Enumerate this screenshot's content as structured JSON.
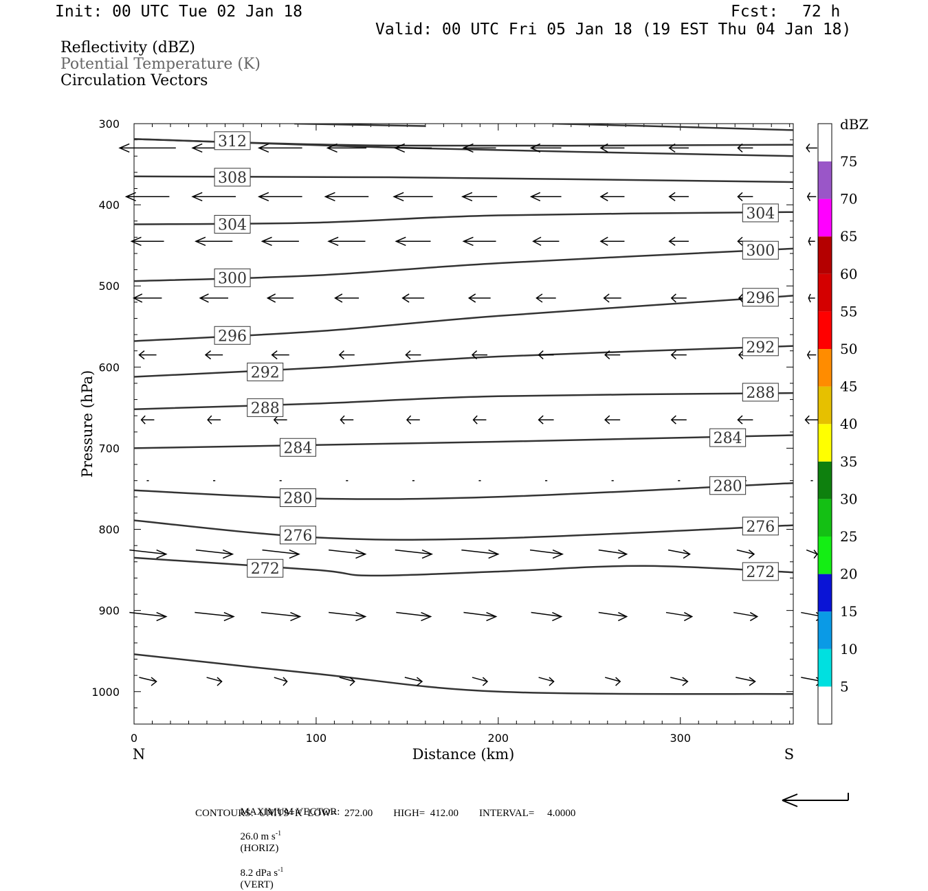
{
  "header": {
    "init": "Init: 00 UTC Tue 02 Jan 18",
    "fcst_label": "Fcst:",
    "fcst_value": "72 h",
    "valid": "Valid: 00 UTC Fri 05 Jan 18 (19 EST Thu 04 Jan 18)"
  },
  "fields": {
    "reflectivity": "Reflectivity (dBZ)",
    "theta": "Potential Temperature (K)",
    "vectors": "Circulation Vectors"
  },
  "colors": {
    "theta_label": "#666666",
    "contour": "#333333"
  },
  "chart_data": {
    "type": "line",
    "title": "",
    "xlabel": "Distance (km)",
    "ylabel": "Pressure (hPa)",
    "xlim": [
      0,
      362
    ],
    "ylim": [
      1040,
      300
    ],
    "y_inverted": true,
    "x_ticks": [
      0,
      100,
      200,
      300
    ],
    "y_ticks": [
      300,
      400,
      500,
      600,
      700,
      800,
      900,
      1000
    ],
    "x_end_labels": {
      "left": "N",
      "right": "S"
    },
    "isentropes": [
      {
        "name": "312",
        "x": [
          0,
          140,
          362
        ],
        "y": [
          319,
          327,
          326
        ]
      },
      {
        "name": "308",
        "x": [
          0,
          140,
          362
        ],
        "y": [
          365,
          366,
          372
        ]
      },
      {
        "name": "304",
        "x": [
          0,
          100,
          200,
          362
        ],
        "y": [
          424,
          422,
          413,
          409
        ]
      },
      {
        "name": "300",
        "x": [
          0,
          100,
          200,
          362
        ],
        "y": [
          494,
          487,
          472,
          454
        ]
      },
      {
        "name": "296",
        "x": [
          0,
          100,
          200,
          362
        ],
        "y": [
          568,
          556,
          537,
          512
        ]
      },
      {
        "name": "292",
        "x": [
          0,
          100,
          200,
          362
        ],
        "y": [
          612,
          601,
          587,
          574
        ]
      },
      {
        "name": "288",
        "x": [
          0,
          100,
          200,
          362
        ],
        "y": [
          652,
          645,
          636,
          632
        ]
      },
      {
        "name": "284",
        "x": [
          0,
          100,
          200,
          362
        ],
        "y": [
          700,
          696,
          692,
          684
        ]
      },
      {
        "name": "280",
        "x": [
          0,
          100,
          200,
          362
        ],
        "y": [
          752,
          762,
          760,
          743
        ]
      },
      {
        "name": "276",
        "x": [
          0,
          100,
          200,
          362
        ],
        "y": [
          789,
          810,
          811,
          795
        ]
      },
      {
        "name": "272",
        "x": [
          0,
          100,
          130,
          200,
          280,
          362
        ],
        "y": [
          835,
          850,
          857,
          852,
          845,
          853
        ]
      },
      {
        "name": "",
        "x": [
          0,
          100,
          200,
          362
        ],
        "y": [
          954,
          978,
          1000,
          1003
        ]
      }
    ],
    "contour_labels": [
      {
        "text": "312",
        "x": 54,
        "p": 321
      },
      {
        "text": "308",
        "x": 54,
        "p": 366
      },
      {
        "text": "304",
        "x": 54,
        "p": 424
      },
      {
        "text": "300",
        "x": 54,
        "p": 490
      },
      {
        "text": "296",
        "x": 54,
        "p": 561
      },
      {
        "text": "292",
        "x": 72,
        "p": 606
      },
      {
        "text": "288",
        "x": 72,
        "p": 650
      },
      {
        "text": "284",
        "x": 90,
        "p": 699
      },
      {
        "text": "280",
        "x": 90,
        "p": 761
      },
      {
        "text": "276",
        "x": 90,
        "p": 807
      },
      {
        "text": "272",
        "x": 72,
        "p": 848
      },
      {
        "text": "304",
        "x": 344,
        "p": 410
      },
      {
        "text": "300",
        "x": 344,
        "p": 456
      },
      {
        "text": "296",
        "x": 344,
        "p": 514
      },
      {
        "text": "292",
        "x": 344,
        "p": 575
      },
      {
        "text": "288",
        "x": 344,
        "p": 631
      },
      {
        "text": "284",
        "x": 326,
        "p": 687
      },
      {
        "text": "280",
        "x": 326,
        "p": 746
      },
      {
        "text": "276",
        "x": 344,
        "p": 796
      },
      {
        "text": "272",
        "x": 344,
        "p": 852
      }
    ],
    "wind_vectors": {
      "max_horiz_ms": 26.0,
      "rows": [
        {
          "p": 330,
          "u": [
            -26,
            -20,
            -20,
            -18,
            -17,
            -15,
            -14,
            -11,
            -9,
            -7,
            -5
          ]
        },
        {
          "p": 390,
          "u": [
            -20,
            -20,
            -20,
            -20,
            -18,
            -16,
            -14,
            -11,
            -9,
            -7,
            -4
          ]
        },
        {
          "p": 445,
          "u": [
            -15,
            -17,
            -17,
            -17,
            -16,
            -15,
            -12,
            -11,
            -9,
            -7,
            -3
          ]
        },
        {
          "p": 515,
          "u": [
            -13,
            -13,
            -12,
            -11,
            -10,
            -10,
            -9,
            -8,
            -7,
            -6,
            -3
          ]
        },
        {
          "p": 585,
          "u": [
            -8,
            -8,
            -8,
            -7,
            -7,
            -7,
            -7,
            -7,
            -7,
            -6,
            -4
          ]
        },
        {
          "p": 665,
          "u": [
            -6,
            -6,
            -6,
            -6,
            -6,
            -6,
            -7,
            -7,
            -7,
            -7,
            -6
          ]
        },
        {
          "p": 740,
          "u": [
            -1,
            -1,
            -1,
            -1,
            -1,
            -1,
            -1,
            -1,
            -1,
            -1,
            -1
          ]
        },
        {
          "p": 828,
          "u": [
            17,
            17,
            17,
            17,
            17,
            17,
            15,
            13,
            10,
            8,
            5
          ]
        },
        {
          "p": 905,
          "u": [
            17,
            18,
            18,
            17,
            16,
            15,
            14,
            13,
            12,
            11,
            10
          ]
        },
        {
          "p": 985,
          "u": [
            8,
            7,
            6,
            7,
            8,
            7,
            7,
            7,
            8,
            9,
            10
          ]
        }
      ]
    },
    "colorbar": {
      "unit": "dBZ",
      "labels": [
        "5",
        "10",
        "15",
        "20",
        "25",
        "30",
        "35",
        "40",
        "45",
        "50",
        "55",
        "60",
        "65",
        "70",
        "75"
      ],
      "bins": [
        {
          "color": "#ffffff"
        },
        {
          "color": "#00e0e0"
        },
        {
          "color": "#0a9ae6"
        },
        {
          "color": "#0a14d6"
        },
        {
          "color": "#14ee14"
        },
        {
          "color": "#14c014"
        },
        {
          "color": "#0e800e"
        },
        {
          "color": "#ffff00"
        },
        {
          "color": "#e6c000"
        },
        {
          "color": "#ff8c00"
        },
        {
          "color": "#ff0000"
        },
        {
          "color": "#d40000"
        },
        {
          "color": "#b40000"
        },
        {
          "color": "#ff00ff"
        },
        {
          "color": "#9a56c8"
        },
        {
          "color": "#ffffff"
        }
      ]
    }
  },
  "footer": {
    "max_vector_label": "MAXIMUM VECTOR:",
    "max_horiz": "26.0 m s",
    "horiz_exp": "-1",
    "horiz_tag": "(HORIZ)",
    "max_vert": "8.2 dPa s",
    "vert_exp": "-1",
    "vert_tag": "(VERT)",
    "contours": "CONTOURS:  UNITS=K  LOW=   272.00        HIGH=  412.00        INTERVAL=     4.0000"
  }
}
